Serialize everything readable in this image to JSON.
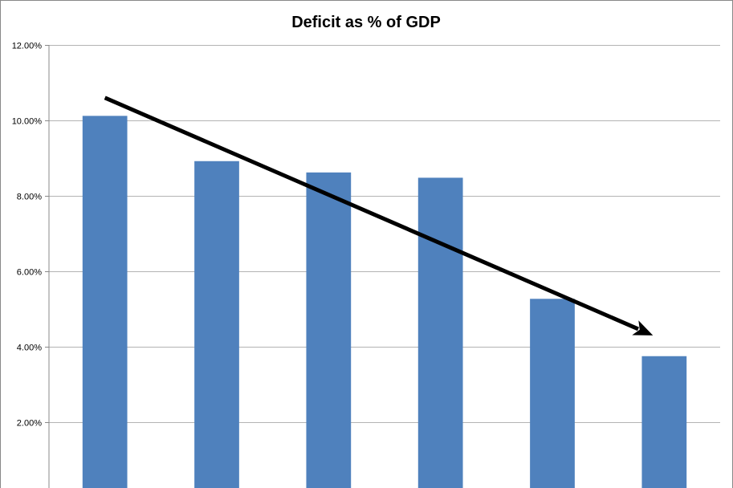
{
  "chart_data": {
    "type": "bar",
    "title": "Deficit as % of GDP",
    "xlabel": "",
    "ylabel": "",
    "categories": [
      "",
      "",
      "",
      "",
      "",
      ""
    ],
    "values": [
      10.12,
      8.92,
      8.62,
      8.48,
      5.27,
      3.75
    ],
    "ylim": [
      0,
      12
    ],
    "yticks": [
      "2.00%",
      "4.00%",
      "6.00%",
      "8.00%",
      "10.00%",
      "12.00%"
    ],
    "ytick_values": [
      2,
      4,
      6,
      8,
      10,
      12
    ],
    "grid": true,
    "legend": "none",
    "bar_color": "#4f81bd",
    "annotation": {
      "type": "trend-arrow",
      "color": "#000000",
      "from": {
        "category_index": 0,
        "value": 10.6
      },
      "to": {
        "category_index": 5,
        "value": 4.3
      }
    }
  }
}
